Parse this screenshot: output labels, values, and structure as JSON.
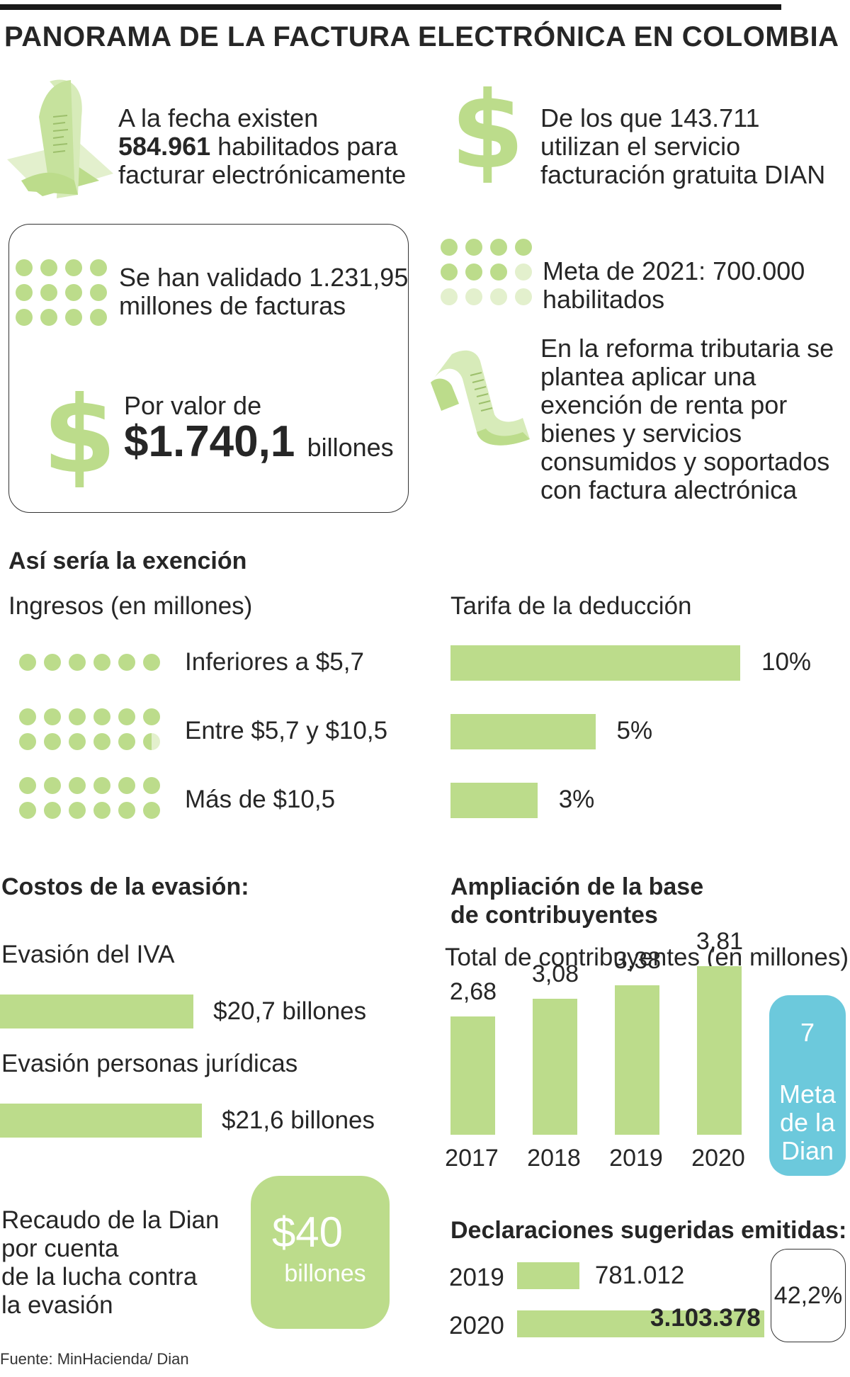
{
  "title": "PANORAMA DE LA FACTURA ELECTRÓNICA EN COLOMBIA",
  "colors": {
    "accent": "#bcdc8b",
    "accent_light": "#e3f0cd",
    "teal": "#6cc9dc",
    "text": "#262626"
  },
  "icons": [
    "receipt-laptop-icon",
    "dollar-icon",
    "receipt-icon",
    "dot-grid-icon"
  ],
  "stats": {
    "habilitados_pre": "A la fecha existen",
    "habilitados_num": "584.961",
    "habilitados_post": " habilitados para\nfacturar electrónicamente",
    "gratuita": "De los que 143.711\nutilizan el servicio\nfacturación gratuita DIAN",
    "validado": "Se han validado 1.231,95\nmillones de facturas",
    "valor_label": "Por valor de",
    "valor_num": "$1.740,1",
    "valor_unit": "billones",
    "meta": "Meta de 2021: 700.000\nhabilitados",
    "reforma": "En la reforma tributaria se\nplantea aplicar una\nexención de renta por\nbienes y servicios\nconsumidos y soportados\ncon factura alectrónica"
  },
  "exencion": {
    "title": "Así sería la exención",
    "ingresos_label": "Ingresos (en millones)",
    "tarifa_label": "Tarifa de la deducción"
  },
  "evasion": {
    "title": "Costos de la evasión:",
    "iva_label": "Evasión del IVA",
    "iva_value": "$20,7 billones",
    "juridicas_label": "Evasión personas jurídicas",
    "juridicas_value": "$21,6 billones",
    "recaudo_label": "Recaudo de la Dian\npor cuenta\nde la lucha contra\nla evasión",
    "recaudo_value": "$40",
    "recaudo_unit": "billones"
  },
  "ampliacion": {
    "title": "Ampliación de la base\nde contribuyentes",
    "subtitle": "Total de contribuyentes (en millones)",
    "meta_value": "7",
    "meta_label": "Meta\nde la\nDian"
  },
  "declaraciones": {
    "title": "Declaraciones sugeridas emitidas:",
    "growth": "42,2%"
  },
  "source": "Fuente: MinHacienda/ Dian",
  "chart_data": [
    {
      "type": "bar",
      "title": "Tarifa de la deducción",
      "categories": [
        "Inferiores a $5,7",
        "Entre $5,7 y $10,5",
        "Más de $10,5"
      ],
      "values": [
        10,
        5,
        3
      ],
      "labels": [
        "10%",
        "5%",
        "3%"
      ],
      "unit": "%"
    },
    {
      "type": "bar",
      "title": "Costos de la evasión:",
      "categories": [
        "Evasión del IVA",
        "Evasión personas jurídicas"
      ],
      "values": [
        20.7,
        21.6
      ],
      "unit": "billones"
    },
    {
      "type": "bar",
      "title": "Ampliación de la base de contribuyentes",
      "ylabel": "Total de contribuyentes (en millones)",
      "categories": [
        "2017",
        "2018",
        "2019",
        "2020"
      ],
      "values": [
        2.68,
        3.08,
        3.38,
        3.81
      ],
      "labels": [
        "2,68",
        "3,08",
        "3,38",
        "3,81"
      ]
    },
    {
      "type": "bar",
      "title": "Declaraciones sugeridas emitidas:",
      "categories": [
        "2019",
        "2020"
      ],
      "values": [
        781012,
        3103378
      ],
      "labels": [
        "781.012",
        "3.103.378"
      ]
    }
  ]
}
